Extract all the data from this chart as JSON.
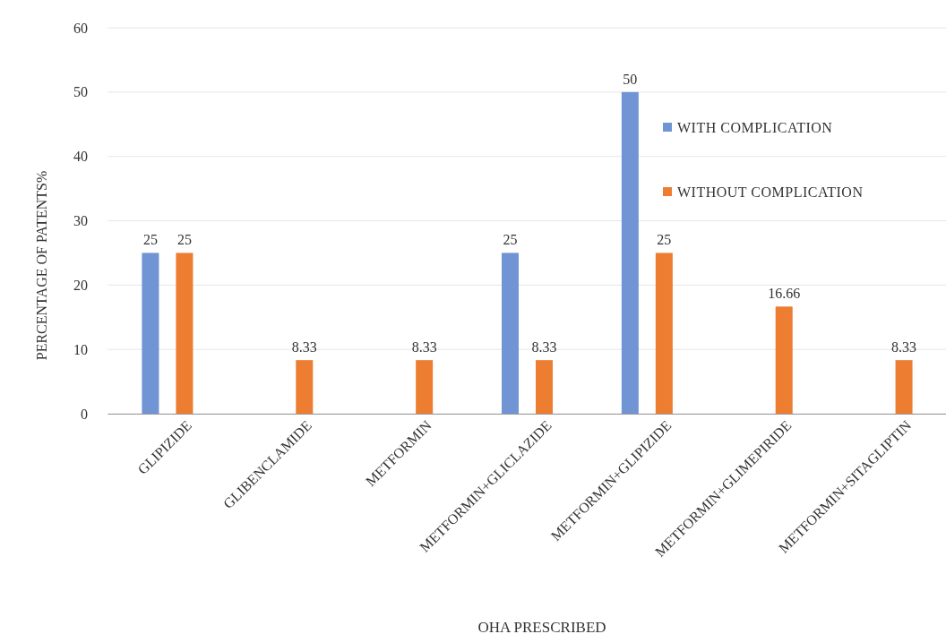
{
  "chart_data": {
    "type": "bar",
    "xlabel": "OHA PRESCRIBED",
    "ylabel": "PERCENTAGE OF PATENTS%",
    "categories": [
      "GLIPIZIDE",
      "GLIBENCLAMIDE",
      "METFORMIN",
      "METFORMIN+GLICLAZIDE",
      "METFORMIN+GLIPIZIDE",
      "METFORMIN+GLIMEPIRIDE",
      "METFORMIN+SITAGLIPTIN"
    ],
    "series": [
      {
        "name": "WITH COMPLICATION",
        "color": "#7094d4",
        "values": [
          25,
          null,
          null,
          25,
          50,
          null,
          null
        ]
      },
      {
        "name": "WITHOUT COMPLICATION",
        "color": "#ed7d31",
        "values": [
          25,
          8.33,
          8.33,
          8.33,
          25,
          16.66,
          8.33
        ]
      }
    ],
    "ylim": [
      0,
      60
    ],
    "yticks": [
      0,
      10,
      20,
      30,
      40,
      50,
      60
    ],
    "grid": "y",
    "legend": "top right",
    "data_labels": true
  }
}
